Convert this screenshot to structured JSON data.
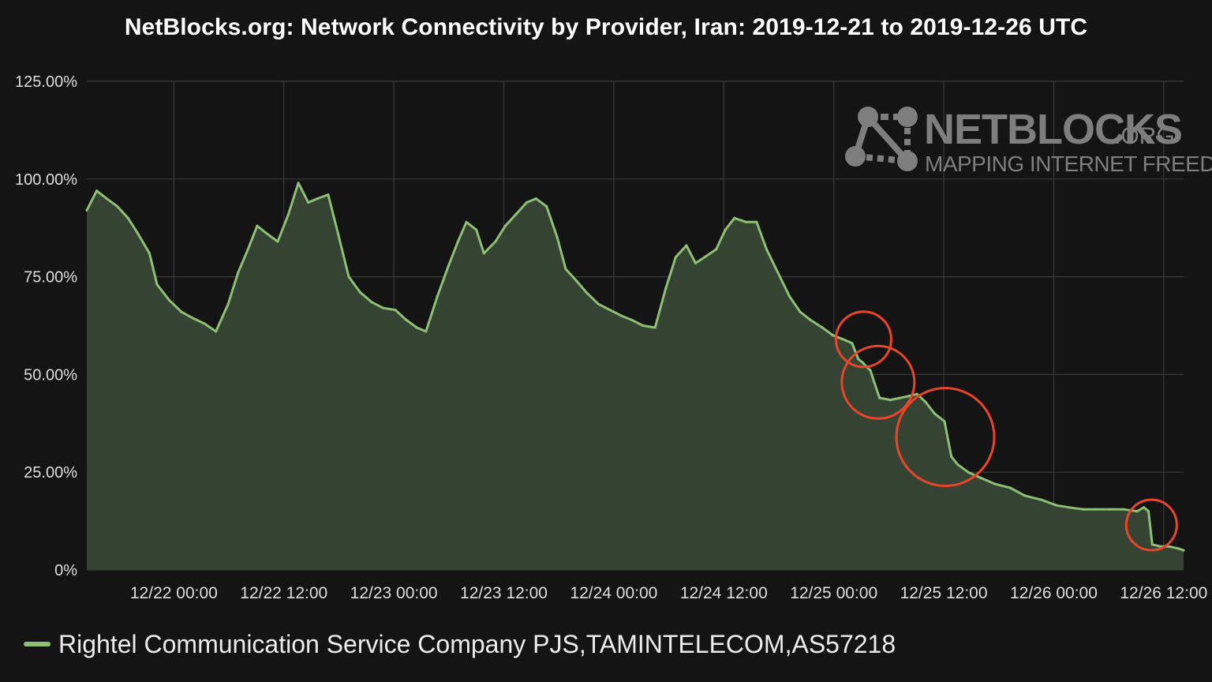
{
  "chart_data": {
    "type": "area",
    "title": "NetBlocks.org: Network Connectivity by Provider, Iran: 2019-12-21 to 2019-12-26 UTC",
    "xlabel": "",
    "ylabel": "",
    "x_start": "2019-12-21 14:30",
    "x_end": "2019-12-26 14:10",
    "ylim": [
      0,
      125
    ],
    "y_ticks": [
      {
        "value": 0,
        "label": "0%"
      },
      {
        "value": 25,
        "label": "25.00%"
      },
      {
        "value": 50,
        "label": "50.00%"
      },
      {
        "value": 75,
        "label": "75.00%"
      },
      {
        "value": 100,
        "label": "100.00%"
      },
      {
        "value": 125,
        "label": "125.00%"
      }
    ],
    "x_ticks": [
      {
        "time": "2019-12-22 00:00",
        "label": "12/22 00:00"
      },
      {
        "time": "2019-12-22 12:00",
        "label": "12/22 12:00"
      },
      {
        "time": "2019-12-23 00:00",
        "label": "12/23 00:00"
      },
      {
        "time": "2019-12-23 12:00",
        "label": "12/23 12:00"
      },
      {
        "time": "2019-12-24 00:00",
        "label": "12/24 00:00"
      },
      {
        "time": "2019-12-24 12:00",
        "label": "12/24 12:00"
      },
      {
        "time": "2019-12-25 00:00",
        "label": "12/25 00:00"
      },
      {
        "time": "2019-12-25 12:00",
        "label": "12/25 12:00"
      },
      {
        "time": "2019-12-26 00:00",
        "label": "12/26 00:00"
      },
      {
        "time": "2019-12-26 12:00",
        "label": "12/26 12:00"
      }
    ],
    "grid": true,
    "legend_position": "bottom-left",
    "series": [
      {
        "name": "Rightel Communication Service Company PJS,TAMINTELECOM,AS57218",
        "color": "#8fbf75",
        "fill": "#354333",
        "points": [
          [
            "2019-12-21 14:30",
            92
          ],
          [
            "2019-12-21 15:35",
            97
          ],
          [
            "2019-12-21 16:40",
            95
          ],
          [
            "2019-12-21 17:50",
            93
          ],
          [
            "2019-12-21 19:00",
            90
          ],
          [
            "2019-12-21 20:05",
            86
          ],
          [
            "2019-12-21 21:20",
            81
          ],
          [
            "2019-12-21 22:10",
            73
          ],
          [
            "2019-12-21 23:30",
            69
          ],
          [
            "2019-12-22 00:50",
            66
          ],
          [
            "2019-12-22 02:00",
            64.5
          ],
          [
            "2019-12-22 03:20",
            63
          ],
          [
            "2019-12-22 04:35",
            61
          ],
          [
            "2019-12-22 05:55",
            68
          ],
          [
            "2019-12-22 07:00",
            76
          ],
          [
            "2019-12-22 08:05",
            82
          ],
          [
            "2019-12-22 09:05",
            88
          ],
          [
            "2019-12-22 10:10",
            86
          ],
          [
            "2019-12-22 11:20",
            84
          ],
          [
            "2019-12-22 12:30",
            91
          ],
          [
            "2019-12-22 13:35",
            99
          ],
          [
            "2019-12-22 14:40",
            94
          ],
          [
            "2019-12-22 15:40",
            95
          ],
          [
            "2019-12-22 16:50",
            96
          ],
          [
            "2019-12-22 17:55",
            86
          ],
          [
            "2019-12-22 19:05",
            75
          ],
          [
            "2019-12-22 20:20",
            71
          ],
          [
            "2019-12-22 21:35",
            68.5
          ],
          [
            "2019-12-22 22:50",
            67
          ],
          [
            "2019-12-23 00:10",
            66.5
          ],
          [
            "2019-12-23 01:20",
            64
          ],
          [
            "2019-12-23 02:30",
            62
          ],
          [
            "2019-12-23 03:30",
            61
          ],
          [
            "2019-12-23 04:45",
            70
          ],
          [
            "2019-12-23 06:00",
            78
          ],
          [
            "2019-12-23 07:00",
            84
          ],
          [
            "2019-12-23 07:55",
            89
          ],
          [
            "2019-12-23 09:00",
            87
          ],
          [
            "2019-12-23 09:50",
            81
          ],
          [
            "2019-12-23 11:05",
            84
          ],
          [
            "2019-12-23 12:10",
            88
          ],
          [
            "2019-12-23 13:20",
            91
          ],
          [
            "2019-12-23 14:30",
            94
          ],
          [
            "2019-12-23 15:30",
            95
          ],
          [
            "2019-12-23 16:40",
            93
          ],
          [
            "2019-12-23 17:50",
            85
          ],
          [
            "2019-12-23 18:45",
            77
          ],
          [
            "2019-12-23 19:55",
            74
          ],
          [
            "2019-12-23 21:00",
            71
          ],
          [
            "2019-12-23 22:20",
            68
          ],
          [
            "2019-12-23 23:35",
            66.5
          ],
          [
            "2019-12-24 00:50",
            65
          ],
          [
            "2019-12-24 01:55",
            64
          ],
          [
            "2019-12-24 03:10",
            62.5
          ],
          [
            "2019-12-24 04:30",
            62
          ],
          [
            "2019-12-24 05:40",
            72
          ],
          [
            "2019-12-24 06:45",
            80
          ],
          [
            "2019-12-24 07:55",
            83
          ],
          [
            "2019-12-24 08:55",
            78.5
          ],
          [
            "2019-12-24 09:55",
            80
          ],
          [
            "2019-12-24 11:10",
            82
          ],
          [
            "2019-12-24 12:10",
            87
          ],
          [
            "2019-12-24 13:10",
            90
          ],
          [
            "2019-12-24 14:25",
            89
          ],
          [
            "2019-12-24 15:35",
            89
          ],
          [
            "2019-12-24 16:40",
            82
          ],
          [
            "2019-12-24 17:55",
            76
          ],
          [
            "2019-12-24 19:10",
            70
          ],
          [
            "2019-12-24 20:20",
            66
          ],
          [
            "2019-12-24 21:25",
            64
          ],
          [
            "2019-12-24 22:45",
            62
          ],
          [
            "2019-12-24 23:55",
            60
          ],
          [
            "2019-12-25 01:00",
            59
          ],
          [
            "2019-12-25 02:00",
            58
          ],
          [
            "2019-12-25 02:40",
            54
          ],
          [
            "2019-12-25 03:10",
            53
          ],
          [
            "2019-12-25 04:00",
            51
          ],
          [
            "2019-12-25 04:25",
            48
          ],
          [
            "2019-12-25 05:00",
            44
          ],
          [
            "2019-12-25 06:10",
            43.5
          ],
          [
            "2019-12-25 07:15",
            44
          ],
          [
            "2019-12-25 08:15",
            44.5
          ],
          [
            "2019-12-25 09:05",
            45
          ],
          [
            "2019-12-25 10:00",
            43
          ],
          [
            "2019-12-25 11:00",
            40
          ],
          [
            "2019-12-25 12:05",
            38
          ],
          [
            "2019-12-25 12:50",
            29
          ],
          [
            "2019-12-25 13:30",
            27
          ],
          [
            "2019-12-25 14:40",
            25
          ],
          [
            "2019-12-25 16:05",
            23.5
          ],
          [
            "2019-12-25 17:35",
            22
          ],
          [
            "2019-12-25 19:15",
            21
          ],
          [
            "2019-12-25 20:50",
            19
          ],
          [
            "2019-12-25 22:35",
            18
          ],
          [
            "2019-12-26 00:20",
            16.5
          ],
          [
            "2019-12-26 01:40",
            16
          ],
          [
            "2019-12-26 03:10",
            15.5
          ],
          [
            "2019-12-26 04:35",
            15.5
          ],
          [
            "2019-12-26 06:05",
            15.5
          ],
          [
            "2019-12-26 07:35",
            15.5
          ],
          [
            "2019-12-26 09:05",
            15
          ],
          [
            "2019-12-26 09:50",
            16
          ],
          [
            "2019-12-26 10:20",
            15
          ],
          [
            "2019-12-26 10:45",
            6.5
          ],
          [
            "2019-12-26 11:40",
            6
          ],
          [
            "2019-12-26 12:35",
            6
          ],
          [
            "2019-12-26 13:35",
            5.5
          ],
          [
            "2019-12-26 14:10",
            5
          ]
        ]
      }
    ],
    "annotations": [
      {
        "type": "circle",
        "color": "#e8452b",
        "time": "2019-12-25 03:15",
        "value": 59
      },
      {
        "type": "circle",
        "color": "#e8452b",
        "time": "2019-12-25 04:50",
        "value": 48
      },
      {
        "type": "circle",
        "color": "#e8452b",
        "time": "2019-12-25 12:10",
        "value": 34
      },
      {
        "type": "circle",
        "color": "#e8452b",
        "time": "2019-12-26 10:40",
        "value": 11.5
      }
    ]
  },
  "watermark": {
    "brand": "NETBLOCKS",
    "suffix": ".ORG",
    "tagline": "MAPPING INTERNET FREEDOM"
  }
}
